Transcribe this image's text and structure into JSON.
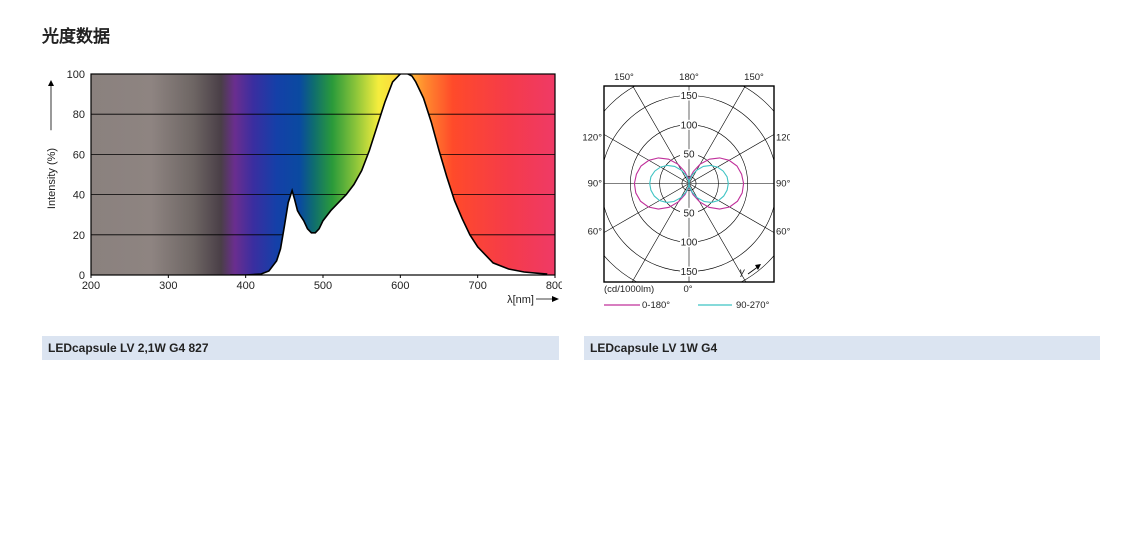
{
  "page": {
    "title": "光度数据"
  },
  "captions": {
    "left": "LEDcapsule LV 2,1W G4 827",
    "right": "LEDcapsule LV 1W G4"
  },
  "chart_data": [
    {
      "type": "area",
      "title": "",
      "xlabel": "λ[nm]",
      "ylabel": "Intensity (%)",
      "xlim": [
        200,
        800
      ],
      "ylim": [
        0,
        100
      ],
      "xticks": [
        200,
        300,
        400,
        500,
        600,
        700,
        800
      ],
      "yticks": [
        0,
        20,
        40,
        60,
        80,
        100
      ],
      "grid": true,
      "x": [
        380,
        400,
        420,
        430,
        440,
        445,
        450,
        455,
        460,
        463,
        467,
        470,
        475,
        480,
        485,
        490,
        495,
        500,
        510,
        520,
        530,
        540,
        550,
        560,
        570,
        580,
        590,
        600,
        605,
        610,
        615,
        620,
        630,
        640,
        650,
        660,
        670,
        680,
        690,
        700,
        720,
        740,
        760,
        780,
        790
      ],
      "y": [
        0,
        0,
        0.5,
        2,
        7,
        13,
        24,
        36,
        42,
        38,
        32,
        30,
        27,
        23,
        21,
        21,
        23,
        27,
        32,
        36,
        40,
        45,
        52,
        62,
        74,
        86,
        96,
        100,
        101,
        100,
        99,
        96,
        88,
        76,
        62,
        49,
        37,
        28,
        20,
        14,
        6,
        3,
        1.5,
        0.8,
        0.5
      ]
    },
    {
      "type": "polar",
      "title": "",
      "unit_label": "(cd/1000lm)",
      "radial_ticks": [
        50,
        100,
        150
      ],
      "radial_max": 150,
      "angle_labels": {
        "top": [
          "150°",
          "180°",
          "150°"
        ],
        "left": [
          "120°",
          "90°",
          "60°"
        ],
        "right": [
          "120°",
          "90°",
          "60°"
        ],
        "bottom": "0°",
        "gamma": "γ"
      },
      "series": [
        {
          "name": "0-180°",
          "color": "#c0309b",
          "gamma": [
            0,
            10,
            20,
            30,
            40,
            50,
            60,
            70,
            80,
            90,
            100,
            110,
            120,
            130,
            140,
            150,
            160,
            170,
            180
          ],
          "values": [
            0,
            8,
            20,
            36,
            53,
            68,
            80,
            88,
            92,
            93,
            91,
            87,
            79,
            68,
            54,
            38,
            22,
            10,
            0
          ]
        },
        {
          "name": "90-270°",
          "color": "#3fc4c4",
          "gamma": [
            0,
            10,
            20,
            30,
            40,
            50,
            60,
            70,
            80,
            90,
            100,
            110,
            120,
            130,
            140,
            150,
            160,
            170,
            180
          ],
          "values": [
            0,
            6,
            16,
            28,
            40,
            50,
            58,
            63,
            66,
            67,
            66,
            62,
            56,
            48,
            38,
            26,
            15,
            6,
            0
          ]
        }
      ]
    }
  ]
}
